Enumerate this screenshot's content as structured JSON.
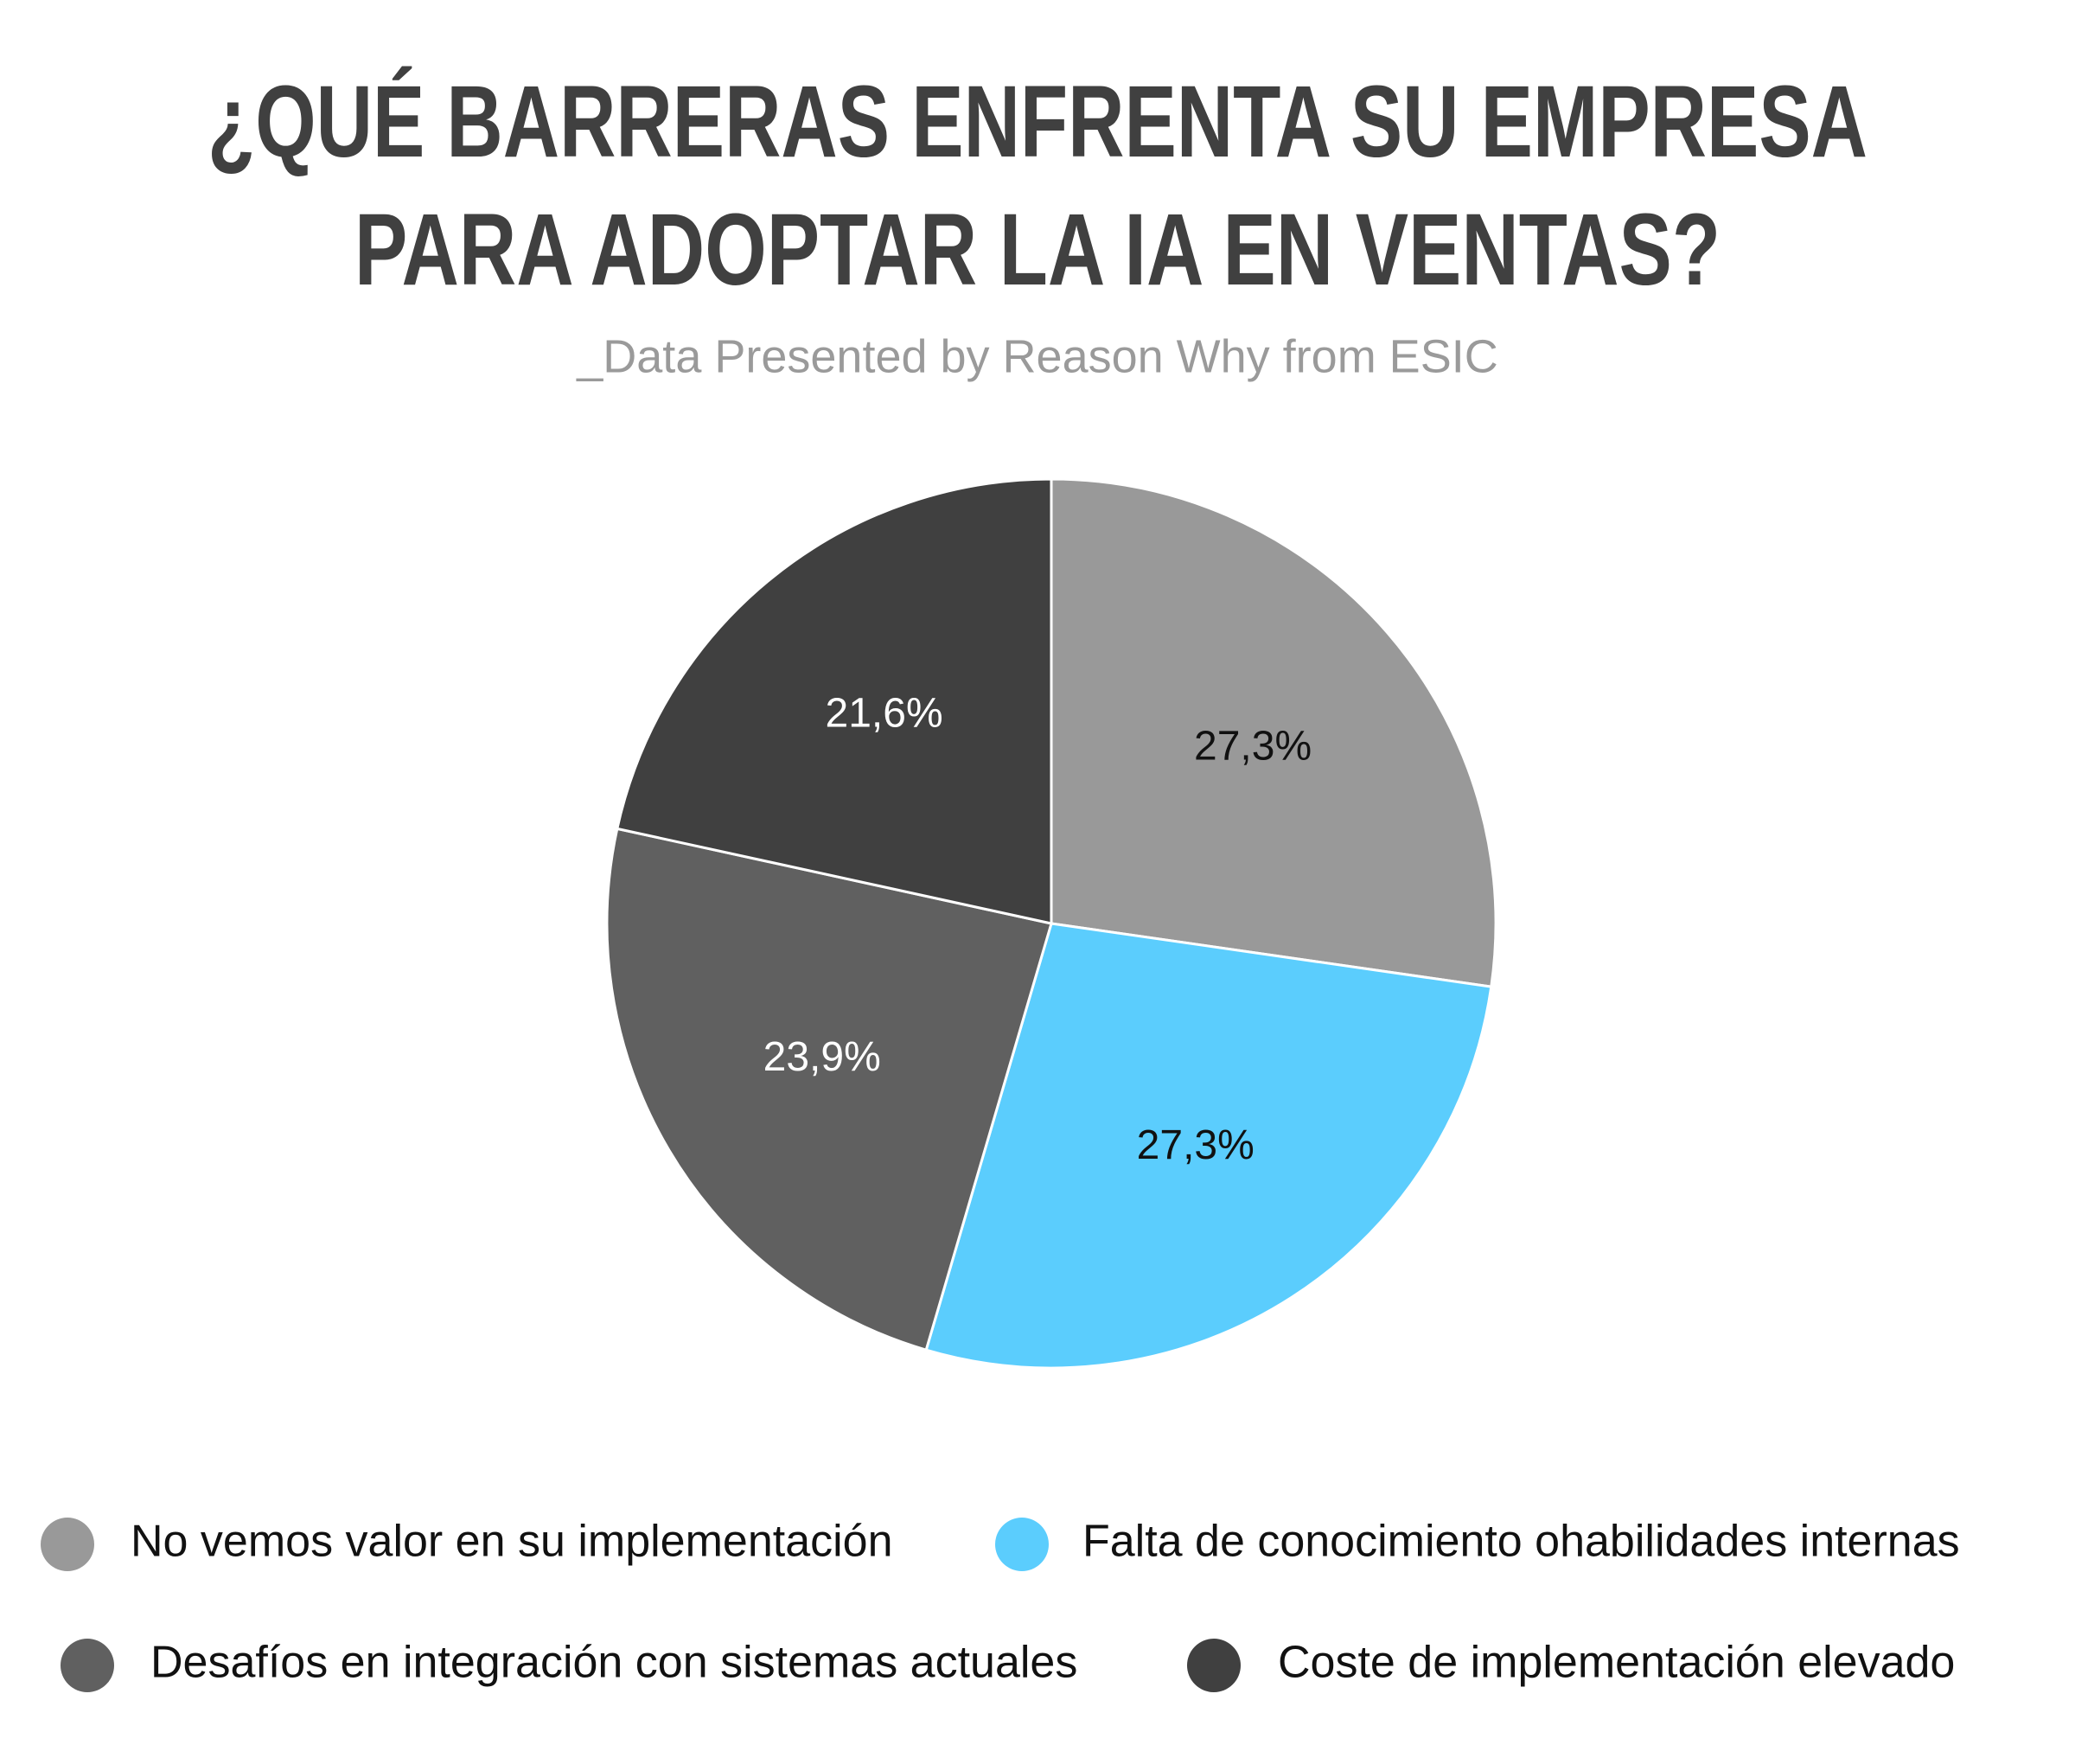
{
  "chart_data": {
    "type": "pie",
    "title": [
      "¿QUÉ BARRERAS ENFRENTA SU EMPRESA",
      "PARA ADOPTAR LA IA EN VENTAS?"
    ],
    "subtitle": "_Data Presented by Reason Why from ESIC",
    "categories": [
      "No vemos valor en su implementación",
      "Falta de conocimiento ohabilidades internas",
      "Desafíos en integración con sistemas actuales",
      "Coste de implementación elevado"
    ],
    "values": [
      27.3,
      27.3,
      23.9,
      21.6
    ],
    "value_labels": [
      "27,3%",
      "27,3%",
      "23,9%",
      "21,6%"
    ],
    "colors": [
      "#999999",
      "#5bcdfd",
      "#606060",
      "#404040"
    ],
    "value_label_colors": [
      "#111111",
      "#111111",
      "#ffffff",
      "#ffffff"
    ]
  }
}
